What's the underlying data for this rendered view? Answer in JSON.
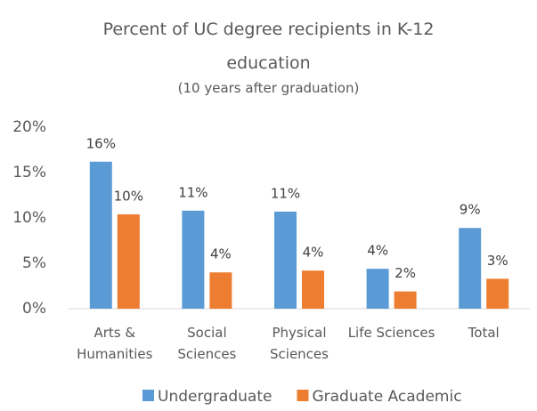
{
  "chart_data": {
    "type": "bar",
    "title": "Percent of UC degree recipients in K-12 education",
    "subtitle": "(10 years after graduation)",
    "categories": [
      "Arts & Humanities",
      "Social Sciences",
      "Physical Sciences",
      "Life Sciences",
      "Total"
    ],
    "series": [
      {
        "name": "Undergraduate",
        "color": "#5b9bd5",
        "values": [
          16.2,
          10.8,
          10.7,
          4.4,
          8.9
        ],
        "value_labels": [
          "16%",
          "11%",
          "11%",
          "4%",
          "9%"
        ]
      },
      {
        "name": "Graduate Academic",
        "color": "#ed7d31",
        "values": [
          10.4,
          4.0,
          4.2,
          1.9,
          3.3
        ],
        "value_labels": [
          "10%",
          "4%",
          "4%",
          "2%",
          "3%"
        ]
      }
    ],
    "ylim": [
      0,
      20
    ],
    "yticks": [
      {
        "value": 0,
        "label": "0%"
      },
      {
        "value": 5,
        "label": "5%"
      },
      {
        "value": 10,
        "label": "10%"
      },
      {
        "value": 15,
        "label": "15%"
      },
      {
        "value": 20,
        "label": "20%"
      }
    ],
    "grid": false,
    "legend": "bottom"
  }
}
